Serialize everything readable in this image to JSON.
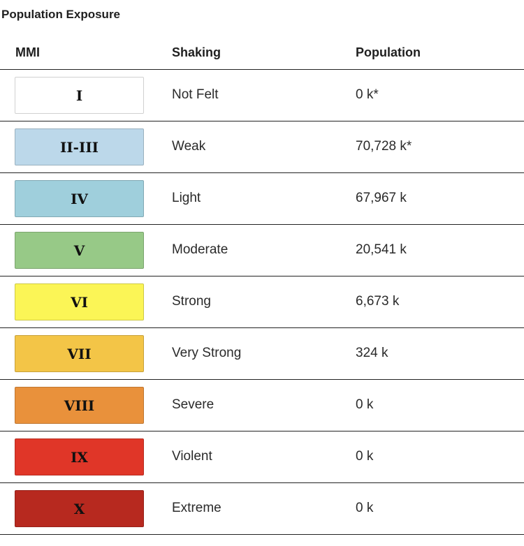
{
  "title": "Population Exposure",
  "columns": {
    "mmi": "MMI",
    "shaking": "Shaking",
    "population": "Population"
  },
  "rows": [
    {
      "mmi": "I",
      "shaking": "Not Felt",
      "population": "0 k*",
      "color": "#ffffff"
    },
    {
      "mmi": "II-III",
      "shaking": "Weak",
      "population": "70,728 k*",
      "color": "#bcd8ea"
    },
    {
      "mmi": "IV",
      "shaking": "Light",
      "population": "67,967 k",
      "color": "#9fcfdc"
    },
    {
      "mmi": "V",
      "shaking": "Moderate",
      "population": "20,541 k",
      "color": "#97c987"
    },
    {
      "mmi": "VI",
      "shaking": "Strong",
      "population": "6,673 k",
      "color": "#fbf556"
    },
    {
      "mmi": "VII",
      "shaking": "Very Strong",
      "population": "324 k",
      "color": "#f3c547"
    },
    {
      "mmi": "VIII",
      "shaking": "Severe",
      "population": "0 k",
      "color": "#e9913b"
    },
    {
      "mmi": "IX",
      "shaking": "Violent",
      "population": "0 k",
      "color": "#e03628"
    },
    {
      "mmi": "X",
      "shaking": "Extreme",
      "population": "0 k",
      "color": "#b7291f"
    }
  ]
}
